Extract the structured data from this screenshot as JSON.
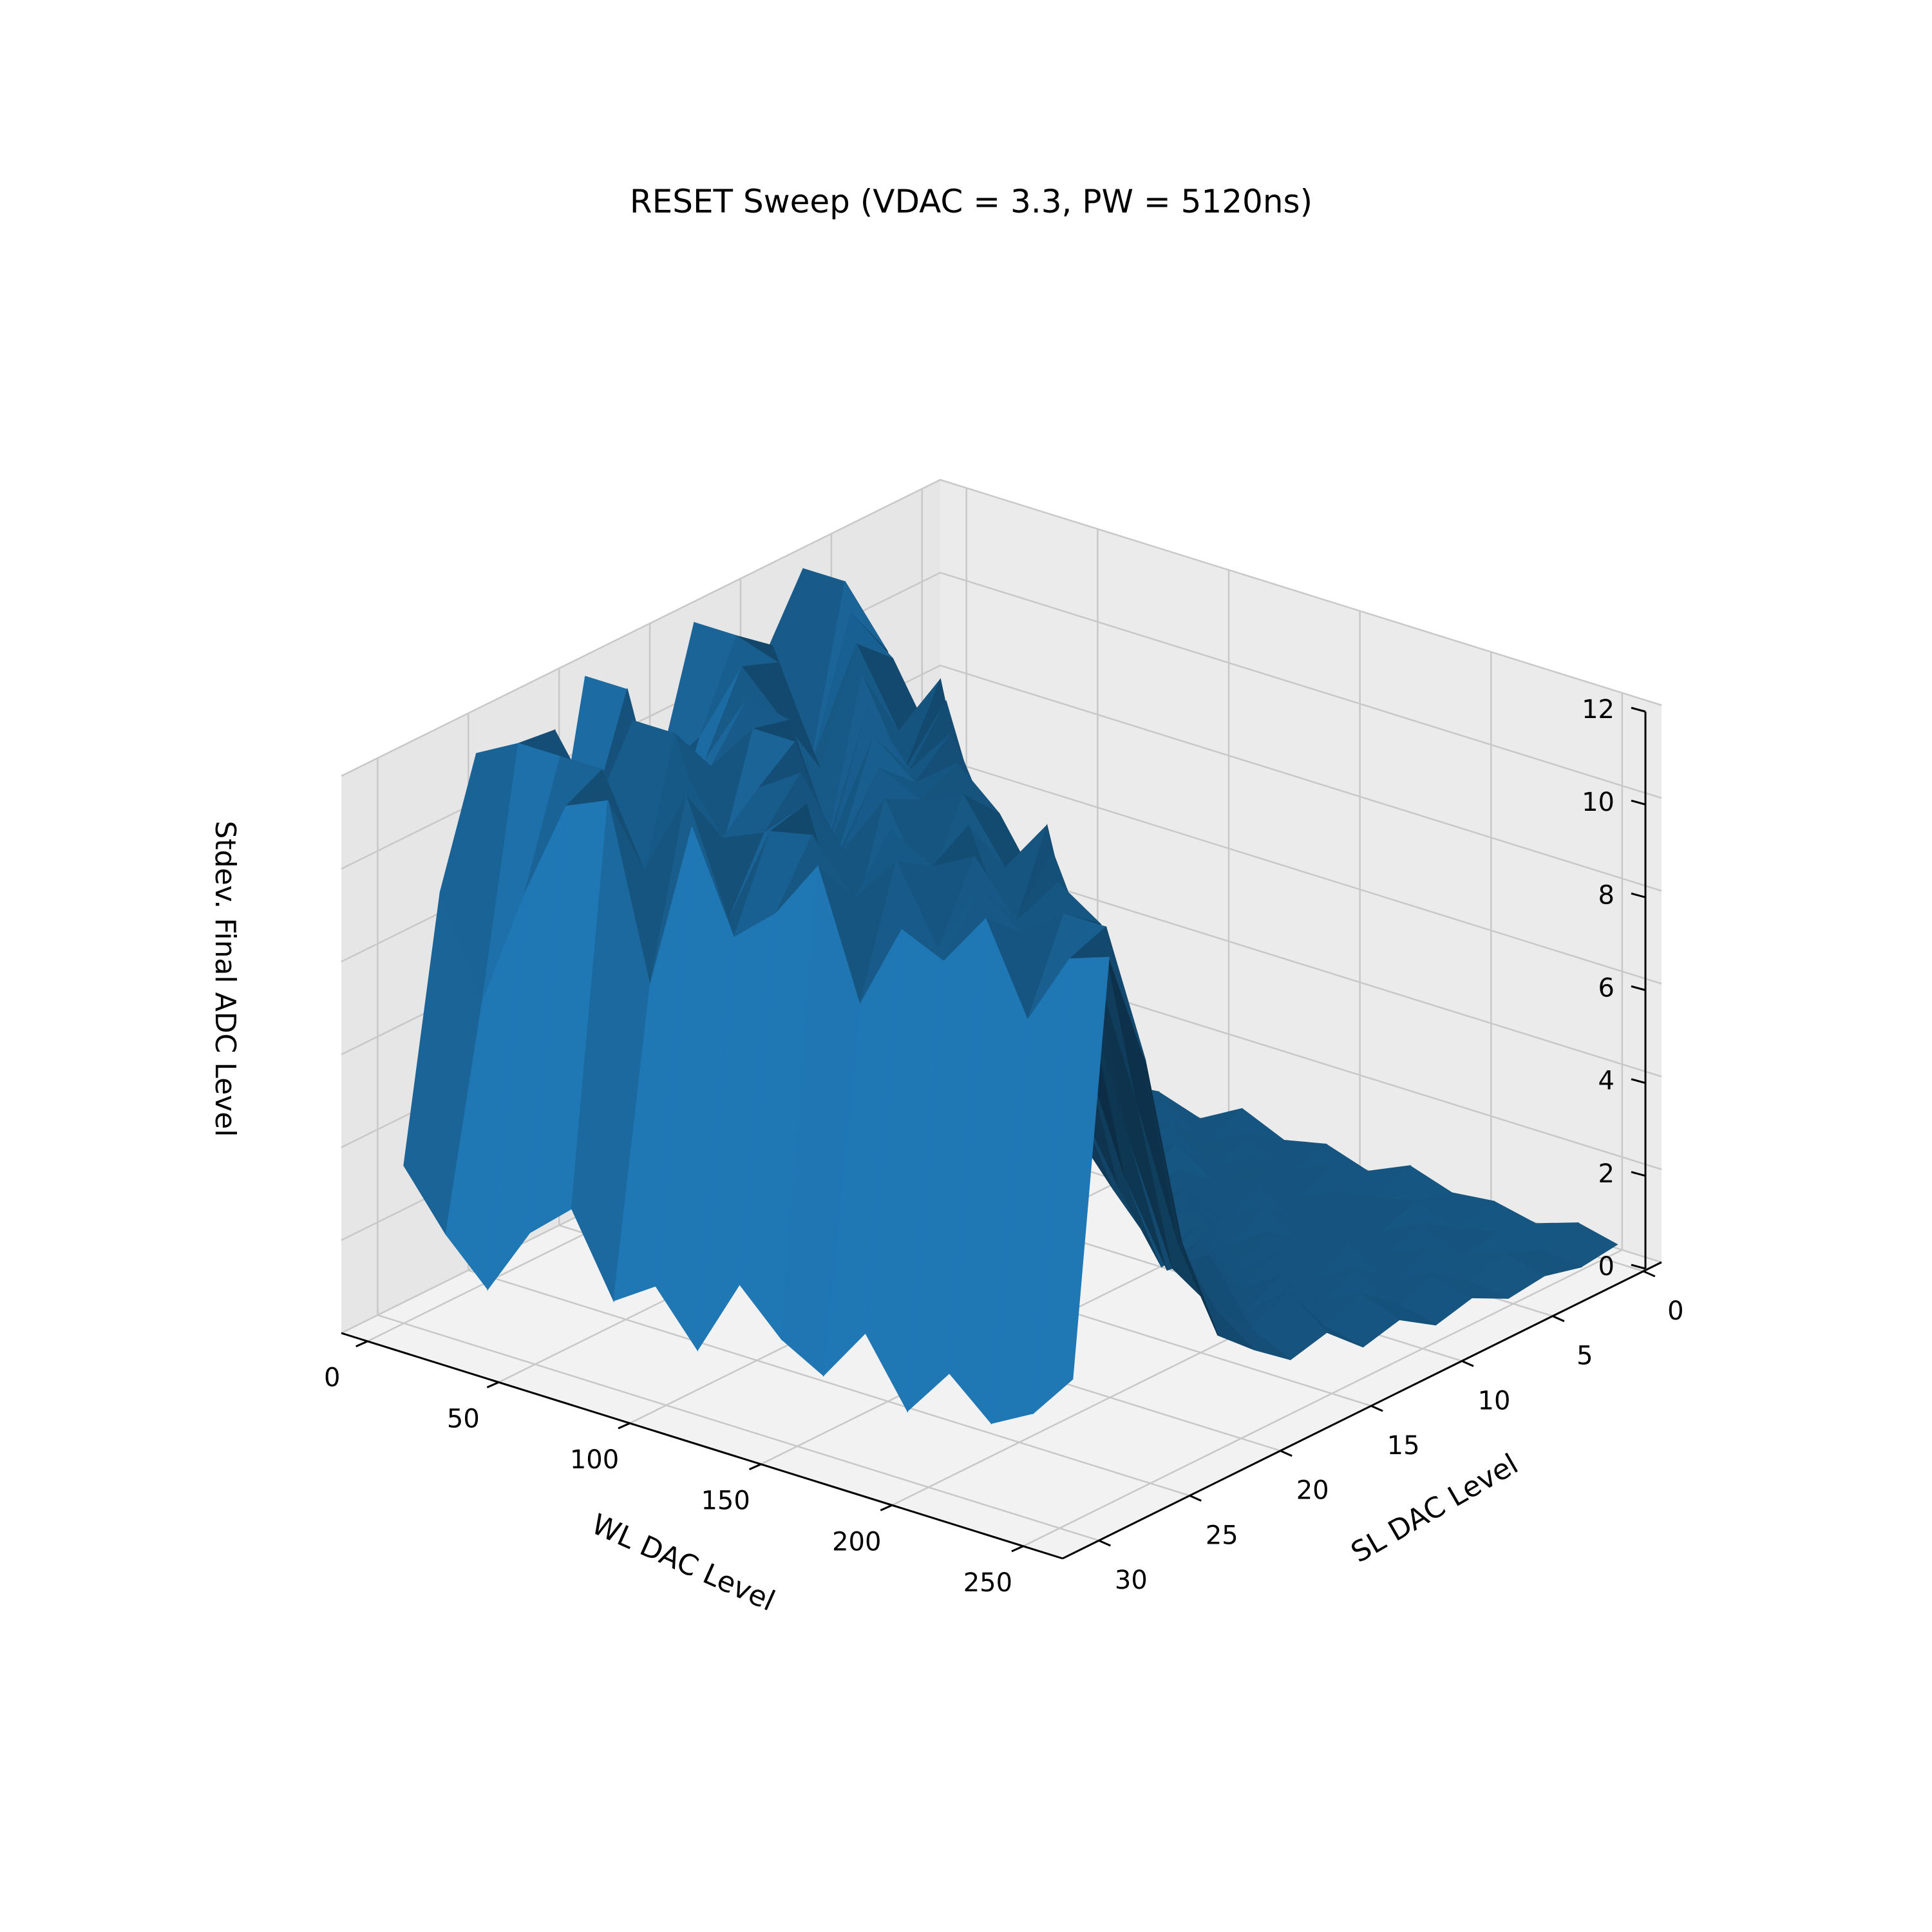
{
  "chart_data": {
    "type": "surface3d",
    "title": "RESET Sweep (VDAC = 3.3, PW = 5120ns)",
    "xlabel": "WL DAC Level",
    "ylabel": "SL DAC Level",
    "zlabel": "Stdev. Final ADC Level",
    "xlim": [
      -10,
      265
    ],
    "ylim": [
      -1,
      32
    ],
    "zlim": [
      0,
      12
    ],
    "x_ticks": [
      {
        "v": 0,
        "label": "0"
      },
      {
        "v": 50,
        "label": "50"
      },
      {
        "v": 100,
        "label": "100"
      },
      {
        "v": 150,
        "label": "150"
      },
      {
        "v": 200,
        "label": "200"
      },
      {
        "v": 250,
        "label": "250"
      }
    ],
    "y_ticks": [
      {
        "v": 0,
        "label": "0"
      },
      {
        "v": 5,
        "label": "5"
      },
      {
        "v": 10,
        "label": "10"
      },
      {
        "v": 15,
        "label": "15"
      },
      {
        "v": 20,
        "label": "20"
      },
      {
        "v": 25,
        "label": "25"
      },
      {
        "v": 30,
        "label": "30"
      }
    ],
    "z_ticks": [
      {
        "v": 0,
        "label": "0"
      },
      {
        "v": 2,
        "label": "2"
      },
      {
        "v": 4,
        "label": "4"
      },
      {
        "v": 6,
        "label": "6"
      },
      {
        "v": 8,
        "label": "8"
      },
      {
        "v": 10,
        "label": "10"
      },
      {
        "v": 12,
        "label": "12"
      }
    ],
    "grid": true,
    "surface_color": "#1f77b4",
    "pane_color": "#f2f2f2",
    "wl_levels": [
      0,
      16,
      32,
      48,
      64,
      80,
      96,
      112,
      128,
      144,
      160,
      176,
      192,
      208,
      224,
      240,
      255
    ],
    "sl_levels": [
      0,
      2,
      4,
      6,
      8,
      10,
      12,
      14,
      16,
      18,
      20,
      22,
      24,
      26,
      28,
      30
    ],
    "stdev": [
      [
        5.8,
        7.2,
        9.4,
        11.2,
        12.0,
        10.6,
        8.4,
        12.0,
        9.1,
        10.8,
        12.0,
        7.6,
        9.8,
        11.5,
        8.9,
        3.4
      ],
      [
        1.5,
        2.4,
        6.3,
        9.9,
        12.0,
        8.2,
        11.4,
        12.0,
        10.2,
        7.9,
        12.0,
        9.6,
        11.9,
        12.0,
        6.8,
        2.2
      ],
      [
        0.7,
        1.6,
        3.1,
        7.4,
        10.8,
        12.0,
        9.3,
        11.7,
        12.0,
        10.4,
        8.8,
        12.0,
        10.5,
        12.0,
        9.4,
        1.3
      ],
      [
        0.4,
        0.9,
        1.8,
        3.9,
        8.6,
        11.3,
        12.0,
        9.7,
        11.1,
        12.0,
        10.9,
        12.0,
        8.7,
        12.0,
        11.6,
        2.8
      ],
      [
        0.5,
        1.2,
        0.8,
        1.9,
        4.8,
        9.7,
        10.4,
        12.0,
        8.6,
        11.8,
        12.0,
        9.3,
        12.0,
        10.1,
        12.0,
        3.6
      ],
      [
        0.6,
        0.7,
        1.4,
        0.9,
        2.6,
        6.1,
        11.8,
        10.2,
        12.0,
        9.5,
        12.0,
        11.4,
        10.7,
        12.0,
        8.3,
        1.9
      ],
      [
        0.3,
        1.1,
        0.6,
        1.7,
        1.2,
        3.4,
        7.9,
        12.0,
        10.9,
        12.0,
        9.8,
        12.0,
        11.1,
        9.6,
        12.0,
        2.5
      ],
      [
        0.8,
        0.5,
        1.3,
        0.7,
        2.1,
        1.8,
        4.6,
        9.2,
        12.0,
        11.3,
        12.0,
        10.6,
        12.0,
        11.8,
        9.9,
        1.4
      ],
      [
        0.4,
        0.9,
        0.6,
        1.5,
        0.8,
        2.4,
        2.2,
        6.4,
        10.1,
        12.0,
        11.6,
        12.0,
        9.2,
        12.0,
        10.7,
        3.1
      ],
      [
        0.6,
        0.4,
        1.1,
        0.9,
        1.6,
        1.1,
        2.9,
        3.7,
        8.1,
        11.2,
        12.0,
        10.3,
        12.0,
        10.9,
        12.0,
        2.2
      ],
      [
        0.3,
        0.8,
        0.5,
        1.2,
        0.7,
        1.9,
        1.4,
        2.6,
        4.9,
        9.8,
        10.7,
        12.0,
        11.5,
        12.0,
        9.3,
        1.7
      ],
      [
        0.7,
        0.4,
        0.9,
        0.6,
        1.4,
        0.9,
        2.2,
        1.6,
        3.3,
        6.7,
        11.9,
        9.8,
        12.0,
        10.4,
        11.2,
        2.9
      ],
      [
        0.4,
        0.6,
        0.3,
        1.1,
        0.8,
        1.5,
        1.0,
        2.4,
        1.9,
        4.2,
        8.4,
        12.0,
        10.9,
        12.0,
        10.8,
        1.5
      ],
      [
        0.5,
        0.3,
        0.8,
        0.5,
        1.2,
        0.7,
        1.7,
        1.3,
        2.8,
        2.5,
        5.6,
        9.9,
        12.0,
        11.3,
        12.0,
        2.6
      ],
      [
        0.3,
        0.5,
        0.4,
        0.9,
        0.6,
        1.3,
        0.9,
        1.9,
        1.5,
        3.1,
        3.2,
        7.2,
        11.4,
        12.0,
        10.1,
        1.8
      ],
      [
        0.6,
        0.4,
        0.7,
        0.5,
        1.0,
        0.8,
        1.4,
        1.1,
        2.2,
        1.8,
        2.6,
        4.4,
        8.9,
        12.0,
        11.7,
        2.3
      ],
      [
        0.4,
        0.3,
        0.5,
        0.4,
        0.8,
        0.6,
        1.1,
        0.9,
        1.6,
        1.4,
        2.0,
        2.7,
        5.1,
        9.4,
        12.0,
        3.3
      ]
    ]
  }
}
